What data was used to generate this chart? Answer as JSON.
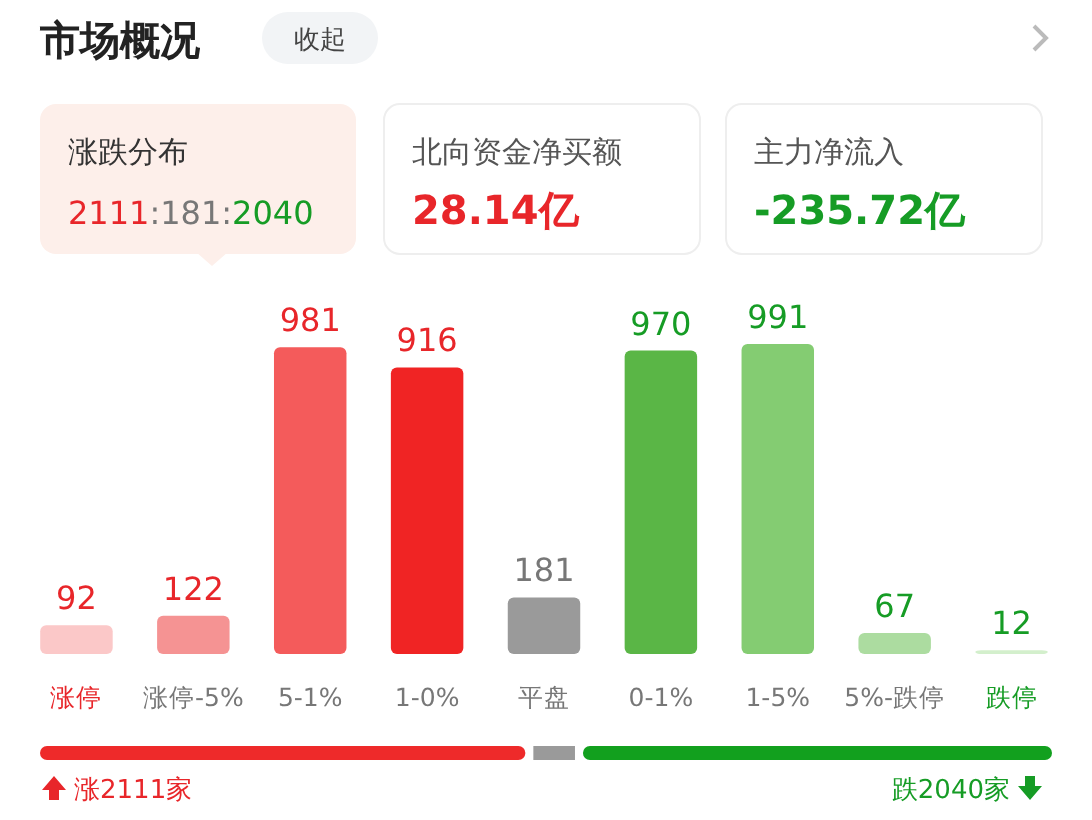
{
  "chart_data": {
    "type": "bar",
    "title": "市场概况",
    "categories": [
      "涨停",
      "涨停-5%",
      "5-1%",
      "1-0%",
      "平盘",
      "0-1%",
      "1-5%",
      "5%-跌停",
      "跌停"
    ],
    "values": [
      92,
      122,
      981,
      916,
      181,
      970,
      991,
      67,
      12
    ],
    "colors": [
      "#fbc8c8",
      "#f59393",
      "#f45b5b",
      "#f02424",
      "#9a9a9a",
      "#5ab646",
      "#84cc72",
      "#acdca0",
      "#d3efcc"
    ],
    "data_labels": true,
    "annotations": [
      "收起",
      "涨跌分布",
      "2111:181:2040",
      "北向资金净买额",
      "28.14亿",
      "主力净流入",
      "-235.72亿",
      "涨2111家",
      "跌2040家"
    ]
  }
}
